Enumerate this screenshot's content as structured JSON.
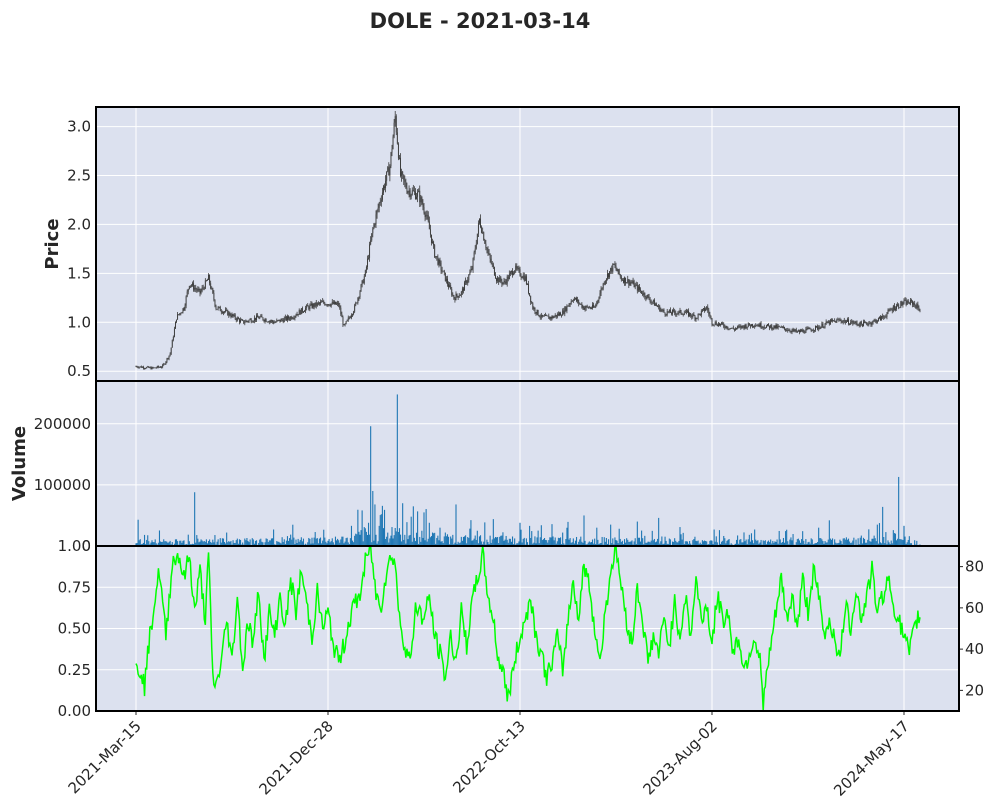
{
  "title": "DOLE - 2021-03-14",
  "colors": {
    "panel_bg": "#dce1ef",
    "grid": "#ffffff",
    "candle": "#3a3a3a",
    "volume": "#1f77b4",
    "rsi": "#00ff00",
    "frame": "#000000"
  },
  "chart_data": [
    {
      "type": "candlestick",
      "panel": "price",
      "ylabel": "Price",
      "ylim": [
        0.4,
        3.2
      ],
      "yticks": [
        "3.0",
        "2.5",
        "2.0",
        "1.5",
        "1.0",
        "0.5"
      ],
      "ytick_values": [
        3.0,
        2.5,
        2.0,
        1.5,
        1.0,
        0.5
      ],
      "xticks": [
        "2021-Mar-15",
        "2021-Dec-28",
        "2022-Oct-13",
        "2023-Aug-02",
        "2024-May-17"
      ],
      "close_keypoints": [
        [
          0,
          0.55
        ],
        [
          15,
          0.53
        ],
        [
          25,
          0.55
        ],
        [
          32,
          0.68
        ],
        [
          38,
          1.05
        ],
        [
          45,
          1.15
        ],
        [
          50,
          1.4
        ],
        [
          60,
          1.3
        ],
        [
          68,
          1.45
        ],
        [
          75,
          1.15
        ],
        [
          85,
          1.1
        ],
        [
          100,
          1.0
        ],
        [
          115,
          1.05
        ],
        [
          130,
          1.0
        ],
        [
          145,
          1.05
        ],
        [
          160,
          1.15
        ],
        [
          175,
          1.2
        ],
        [
          190,
          1.18
        ],
        [
          195,
          0.95
        ],
        [
          205,
          1.15
        ],
        [
          215,
          1.5
        ],
        [
          222,
          1.95
        ],
        [
          230,
          2.3
        ],
        [
          238,
          2.6
        ],
        [
          243,
          3.1
        ],
        [
          248,
          2.5
        ],
        [
          255,
          2.35
        ],
        [
          265,
          2.3
        ],
        [
          272,
          2.1
        ],
        [
          280,
          1.7
        ],
        [
          290,
          1.45
        ],
        [
          298,
          1.25
        ],
        [
          305,
          1.3
        ],
        [
          315,
          1.55
        ],
        [
          322,
          2.05
        ],
        [
          330,
          1.7
        ],
        [
          338,
          1.45
        ],
        [
          345,
          1.4
        ],
        [
          355,
          1.55
        ],
        [
          365,
          1.45
        ],
        [
          372,
          1.15
        ],
        [
          380,
          1.05
        ],
        [
          390,
          1.05
        ],
        [
          400,
          1.1
        ],
        [
          410,
          1.25
        ],
        [
          420,
          1.15
        ],
        [
          430,
          1.15
        ],
        [
          440,
          1.45
        ],
        [
          448,
          1.58
        ],
        [
          455,
          1.45
        ],
        [
          465,
          1.4
        ],
        [
          475,
          1.3
        ],
        [
          485,
          1.2
        ],
        [
          495,
          1.1
        ],
        [
          505,
          1.1
        ],
        [
          515,
          1.1
        ],
        [
          525,
          1.05
        ],
        [
          535,
          1.15
        ],
        [
          540,
          1.0
        ],
        [
          550,
          0.97
        ],
        [
          560,
          0.93
        ],
        [
          570,
          0.96
        ],
        [
          580,
          0.98
        ],
        [
          590,
          0.96
        ],
        [
          600,
          0.95
        ],
        [
          610,
          0.93
        ],
        [
          620,
          0.9
        ],
        [
          630,
          0.92
        ],
        [
          640,
          0.95
        ],
        [
          650,
          1.0
        ],
        [
          660,
          1.02
        ],
        [
          670,
          1.0
        ],
        [
          680,
          0.98
        ],
        [
          690,
          1.0
        ],
        [
          700,
          1.05
        ],
        [
          710,
          1.15
        ],
        [
          720,
          1.2
        ],
        [
          728,
          1.2
        ],
        [
          735,
          1.13
        ]
      ],
      "n_bars": 736
    },
    {
      "type": "bar",
      "panel": "volume",
      "ylabel": "Volume",
      "ylim": [
        0,
        270000
      ],
      "yticks": [
        "200000",
        "100000",
        "0"
      ],
      "ytick_values": [
        200000,
        100000,
        0
      ],
      "base_keypoints": [
        [
          0,
          6000
        ],
        [
          60,
          7000
        ],
        [
          150,
          8000
        ],
        [
          200,
          10000
        ],
        [
          215,
          18000
        ],
        [
          260,
          16000
        ],
        [
          300,
          10000
        ],
        [
          400,
          9000
        ],
        [
          500,
          7000
        ],
        [
          600,
          6000
        ],
        [
          700,
          9000
        ],
        [
          735,
          5000
        ]
      ],
      "spikes": [
        [
          2,
          43000
        ],
        [
          55,
          88000
        ],
        [
          202,
          33000
        ],
        [
          218,
          38000
        ],
        [
          220,
          196000
        ],
        [
          222,
          90000
        ],
        [
          224,
          68000
        ],
        [
          230,
          52000
        ],
        [
          240,
          31000
        ],
        [
          245,
          248000
        ],
        [
          250,
          70000
        ],
        [
          258,
          48000
        ],
        [
          270,
          55000
        ],
        [
          275,
          38000
        ],
        [
          285,
          30000
        ],
        [
          290,
          22000
        ],
        [
          300,
          68000
        ],
        [
          320,
          25000
        ],
        [
          335,
          44000
        ],
        [
          360,
          38000
        ],
        [
          380,
          34000
        ],
        [
          400,
          22000
        ],
        [
          420,
          50000
        ],
        [
          432,
          30000
        ],
        [
          445,
          35000
        ],
        [
          470,
          40000
        ],
        [
          490,
          46000
        ],
        [
          510,
          31000
        ],
        [
          580,
          27000
        ],
        [
          640,
          30000
        ],
        [
          650,
          42000
        ],
        [
          695,
          35000
        ],
        [
          700,
          64000
        ],
        [
          710,
          26000
        ],
        [
          715,
          113000
        ],
        [
          720,
          33000
        ]
      ]
    },
    {
      "type": "line",
      "panel": "indicator",
      "series": [
        {
          "values_keypoints": [
            [
              0,
              0.25
            ],
            [
              5,
              0.25
            ],
            [
              8,
              0.15
            ],
            [
              12,
              0.4
            ],
            [
              18,
              0.7
            ],
            [
              22,
              0.85
            ],
            [
              28,
              0.45
            ],
            [
              34,
              0.9
            ],
            [
              40,
              0.95
            ],
            [
              45,
              0.8
            ],
            [
              50,
              0.95
            ],
            [
              55,
              0.6
            ],
            [
              60,
              0.85
            ],
            [
              65,
              0.55
            ],
            [
              68,
              0.95
            ],
            [
              72,
              0.2
            ],
            [
              75,
              0.15
            ],
            [
              80,
              0.3
            ],
            [
              85,
              0.55
            ],
            [
              90,
              0.3
            ],
            [
              95,
              0.7
            ],
            [
              100,
              0.25
            ],
            [
              105,
              0.55
            ],
            [
              110,
              0.4
            ],
            [
              115,
              0.75
            ],
            [
              120,
              0.3
            ],
            [
              125,
              0.6
            ],
            [
              130,
              0.45
            ],
            [
              135,
              0.7
            ],
            [
              140,
              0.5
            ],
            [
              145,
              0.8
            ],
            [
              150,
              0.6
            ],
            [
              155,
              0.85
            ],
            [
              160,
              0.65
            ],
            [
              165,
              0.45
            ],
            [
              170,
              0.72
            ],
            [
              175,
              0.5
            ],
            [
              180,
              0.6
            ],
            [
              185,
              0.4
            ],
            [
              190,
              0.3
            ],
            [
              195,
              0.4
            ],
            [
              200,
              0.55
            ],
            [
              205,
              0.65
            ],
            [
              210,
              0.7
            ],
            [
              215,
              0.9
            ],
            [
              220,
              1.0
            ],
            [
              225,
              0.7
            ],
            [
              230,
              0.65
            ],
            [
              235,
              0.85
            ],
            [
              240,
              0.95
            ],
            [
              243,
              0.9
            ],
            [
              247,
              0.55
            ],
            [
              252,
              0.4
            ],
            [
              258,
              0.3
            ],
            [
              262,
              0.65
            ],
            [
              270,
              0.55
            ],
            [
              275,
              0.7
            ],
            [
              280,
              0.45
            ],
            [
              285,
              0.35
            ],
            [
              290,
              0.2
            ],
            [
              295,
              0.45
            ],
            [
              300,
              0.3
            ],
            [
              305,
              0.6
            ],
            [
              310,
              0.4
            ],
            [
              315,
              0.65
            ],
            [
              320,
              0.8
            ],
            [
              325,
              0.95
            ],
            [
              330,
              0.7
            ],
            [
              335,
              0.55
            ],
            [
              340,
              0.3
            ],
            [
              345,
              0.25
            ],
            [
              348,
              0.05
            ],
            [
              355,
              0.3
            ],
            [
              360,
              0.45
            ],
            [
              365,
              0.55
            ],
            [
              370,
              0.7
            ],
            [
              375,
              0.45
            ],
            [
              380,
              0.35
            ],
            [
              385,
              0.2
            ],
            [
              390,
              0.3
            ],
            [
              395,
              0.45
            ],
            [
              400,
              0.25
            ],
            [
              405,
              0.55
            ],
            [
              410,
              0.8
            ],
            [
              415,
              0.55
            ],
            [
              420,
              0.9
            ],
            [
              425,
              0.75
            ],
            [
              430,
              0.5
            ],
            [
              435,
              0.3
            ],
            [
              440,
              0.6
            ],
            [
              445,
              0.85
            ],
            [
              450,
              1.0
            ],
            [
              455,
              0.75
            ],
            [
              460,
              0.55
            ],
            [
              465,
              0.4
            ],
            [
              470,
              0.75
            ],
            [
              475,
              0.55
            ],
            [
              480,
              0.3
            ],
            [
              485,
              0.45
            ],
            [
              490,
              0.35
            ],
            [
              495,
              0.55
            ],
            [
              500,
              0.4
            ],
            [
              505,
              0.65
            ],
            [
              510,
              0.45
            ],
            [
              515,
              0.7
            ],
            [
              520,
              0.45
            ],
            [
              525,
              0.8
            ],
            [
              530,
              0.55
            ],
            [
              535,
              0.65
            ],
            [
              540,
              0.4
            ],
            [
              545,
              0.7
            ],
            [
              550,
              0.55
            ],
            [
              555,
              0.6
            ],
            [
              560,
              0.35
            ],
            [
              565,
              0.45
            ],
            [
              570,
              0.25
            ],
            [
              575,
              0.35
            ],
            [
              580,
              0.45
            ],
            [
              585,
              0.3
            ],
            [
              588,
              0.05
            ],
            [
              592,
              0.25
            ],
            [
              600,
              0.6
            ],
            [
              605,
              0.8
            ],
            [
              610,
              0.55
            ],
            [
              615,
              0.7
            ],
            [
              620,
              0.5
            ],
            [
              625,
              0.8
            ],
            [
              630,
              0.6
            ],
            [
              635,
              0.85
            ],
            [
              640,
              0.7
            ],
            [
              645,
              0.45
            ],
            [
              650,
              0.55
            ],
            [
              655,
              0.45
            ],
            [
              660,
              0.3
            ],
            [
              665,
              0.65
            ],
            [
              670,
              0.5
            ],
            [
              675,
              0.75
            ],
            [
              680,
              0.55
            ],
            [
              685,
              0.7
            ],
            [
              690,
              0.85
            ],
            [
              695,
              0.6
            ],
            [
              700,
              0.7
            ],
            [
              705,
              0.8
            ],
            [
              710,
              0.65
            ],
            [
              715,
              0.55
            ],
            [
              720,
              0.45
            ],
            [
              725,
              0.35
            ],
            [
              730,
              0.5
            ],
            [
              735,
              0.6
            ]
          ]
        }
      ],
      "ylim": [
        0,
        1
      ],
      "yticks_left": [
        "1.00",
        "0.75",
        "0.50",
        "0.25",
        "0.00"
      ],
      "yticks_left_values": [
        1.0,
        0.75,
        0.5,
        0.25,
        0.0
      ],
      "ylim_right": [
        10,
        90
      ],
      "yticks_right": [
        "80",
        "60",
        "40",
        "20"
      ],
      "yticks_right_values": [
        80,
        60,
        40,
        20
      ]
    }
  ]
}
